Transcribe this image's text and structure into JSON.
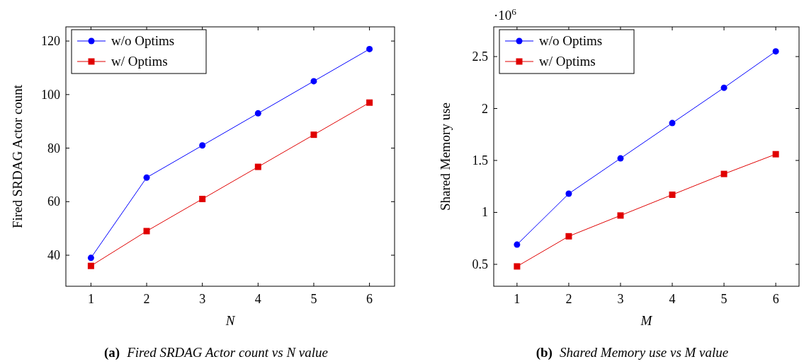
{
  "chart_data": [
    {
      "type": "line",
      "xlabel": "N",
      "ylabel": "Fired SRDAG Actor count",
      "x": [
        1,
        2,
        3,
        4,
        5,
        6
      ],
      "series": [
        {
          "name": "w/o Optims",
          "color": "#0000ff",
          "marker": "circle",
          "values": [
            39,
            69,
            81,
            93,
            105,
            117
          ]
        },
        {
          "name": "w/ Optims",
          "color": "#e00000",
          "marker": "square",
          "values": [
            36,
            49,
            61,
            73,
            85,
            97
          ]
        }
      ],
      "xlim": [
        0.55,
        6.45
      ],
      "ylim": [
        28.4,
        125.3
      ],
      "xticks": [
        1,
        2,
        3,
        4,
        5,
        6
      ],
      "yticks": [
        40,
        60,
        80,
        100,
        120
      ],
      "grid": false,
      "legend": "top left",
      "annotations": [
        "(a) Fired SRDAG Actor count vs N value"
      ]
    },
    {
      "type": "line",
      "xlabel": "M",
      "ylabel": "Shared Memory use",
      "x": [
        1,
        2,
        3,
        4,
        5,
        6
      ],
      "series": [
        {
          "name": "w/o Optims",
          "color": "#0000ff",
          "marker": "circle",
          "values": [
            0.69,
            1.18,
            1.52,
            1.86,
            2.2,
            2.55
          ]
        },
        {
          "name": "w/ Optims",
          "color": "#e00000",
          "marker": "square",
          "values": [
            0.48,
            0.77,
            0.97,
            1.17,
            1.37,
            1.56
          ]
        }
      ],
      "xlim": [
        0.55,
        6.45
      ],
      "ylim": [
        0.289,
        2.786
      ],
      "xticks": [
        1,
        2,
        3,
        4,
        5,
        6
      ],
      "yticks": [
        0.5,
        1,
        1.5,
        2,
        2.5
      ],
      "grid": false,
      "legend": "top left",
      "annotations": [
        "·10$^{6}$",
        "(b) Shared Memory use vs M value"
      ]
    }
  ]
}
